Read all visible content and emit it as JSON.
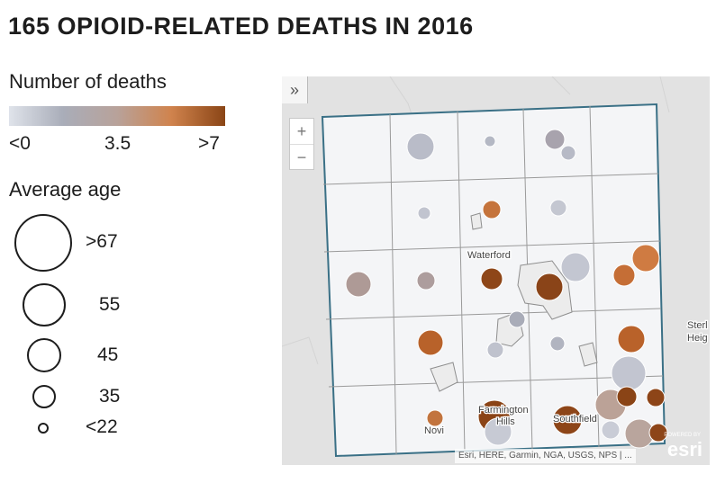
{
  "title": "165 OPIOID-RELATED DEATHS IN 2016",
  "legend": {
    "deaths_heading": "Number of deaths",
    "deaths_min": "<0",
    "deaths_mid": "3.5",
    "deaths_max": ">7",
    "colors": [
      "#dfe3ea",
      "#a9adb9",
      "#b8a29a",
      "#d0834d",
      "#8a4516"
    ],
    "age_heading": "Average age",
    "age_labels": [
      ">67",
      "55",
      "45",
      "35",
      "<22"
    ]
  },
  "map": {
    "collapse_icon": "»",
    "zoom_in": "+",
    "zoom_out": "−",
    "places": {
      "waterford": "Waterford",
      "farmington": "Farmington",
      "hills": "Hills",
      "southfield": "Southfield",
      "novi": "Novi",
      "sterl": "Sterl",
      "heig": "Heig"
    },
    "attribution": "Esri, HERE, Garmin, NGA, USGS, NPS | ...",
    "powered_by": "POWERED BY",
    "esri_logo": "esri"
  }
}
